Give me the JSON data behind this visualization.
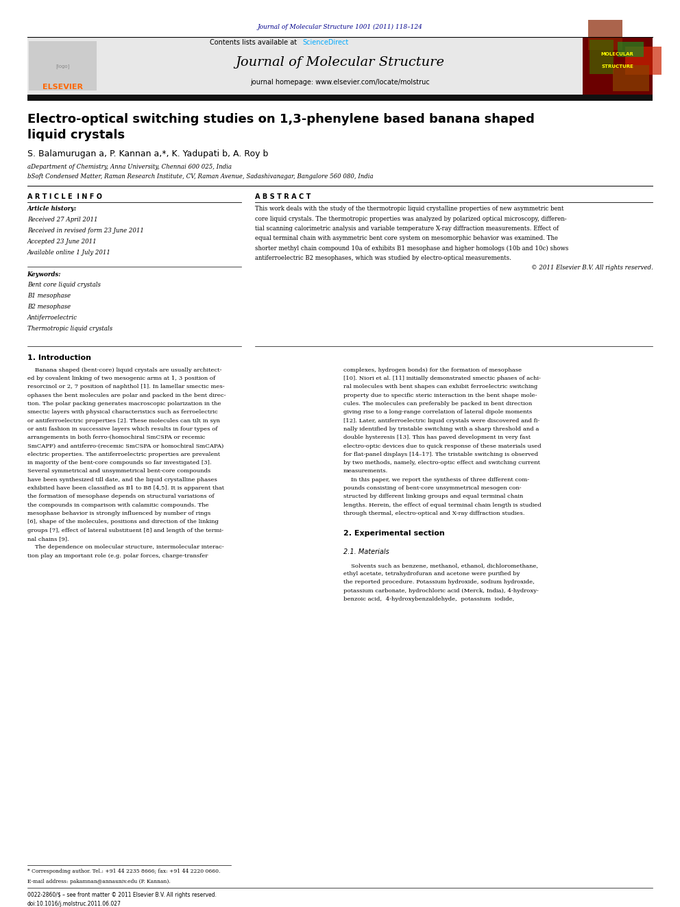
{
  "page_width": 9.92,
  "page_height": 13.23,
  "bg_color": "#ffffff",
  "journal_ref": "Journal of Molecular Structure 1001 (2011) 118–124",
  "journal_ref_color": "#00008B",
  "contents_line": "Contents lists available at ",
  "sciencedirect": "ScienceDirect",
  "sd_color": "#00AAFF",
  "journal_name": "Journal of Molecular Structure",
  "journal_homepage": "journal homepage: www.elsevier.com/locate/molstruc",
  "header_bg": "#E8E8E8",
  "dark_bar_color": "#111111",
  "elsevier_color": "#FF6600",
  "article_title": "Electro-optical switching studies on 1,3-phenylene based banana shaped\nliquid crystals",
  "authors": "S. Balamurugan a, P. Kannan a,*, K. Yadupati b, A. Roy b",
  "affil_a": "aDepartment of Chemistry, Anna University, Chennai 600 025, India",
  "affil_b": "bSoft Condensed Matter, Raman Research Institute, CV, Raman Avenue, Sadashivanagar, Bangalore 560 080, India",
  "article_info_title": "A R T I C L E  I N F O",
  "abstract_title": "A B S T R A C T",
  "article_history_label": "Article history:",
  "received1": "Received 27 April 2011",
  "received2": "Received in revised form 23 June 2011",
  "accepted": "Accepted 23 June 2011",
  "available": "Available online 1 July 2011",
  "keywords_label": "Keywords:",
  "keywords": [
    "Bent core liquid crystals",
    "B1 mesophase",
    "B2 mesophase",
    "Antiferroelectric",
    "Thermotropic liquid crystals"
  ],
  "abstract_text": [
    "This work deals with the study of the thermotropic liquid crystalline properties of new asymmetric bent",
    "core liquid crystals. The thermotropic properties was analyzed by polarized optical microscopy, differen-",
    "tial scanning calorimetric analysis and variable temperature X-ray diffraction measurements. Effect of",
    "equal terminal chain with asymmetric bent core system on mesomorphic behavior was examined. The",
    "shorter methyl chain compound 10a of exhibits B1 mesophase and higher homologs (10b and 10c) shows",
    "antiferroelectric B2 mesophases, which was studied by electro-optical measurements.",
    "© 2011 Elsevier B.V. All rights reserved."
  ],
  "section1_title": "1. Introduction",
  "intro_col1": [
    "    Banana shaped (bent-core) liquid crystals are usually architect-",
    "ed by covalent linking of two mesogenic arms at 1, 3 position of",
    "resorcinol or 2, 7 position of naphthol [1]. In lamellar smectic mes-",
    "ophases the bent molecules are polar and packed in the bent direc-",
    "tion. The polar packing generates macroscopic polarization in the",
    "smectic layers with physical characteristics such as ferroelectric",
    "or antiferroelectric properties [2]. These molecules can tilt in syn",
    "or anti fashion in successive layers which results in four types of",
    "arrangements in both ferro-(homochiral SmCSPA or recemic",
    "SmCAPF) and antiferro-(recemic SmCSPA or homochiral SmCAPA)",
    "electric properties. The antiferroelectric properties are prevalent",
    "in majority of the bent-core compounds so far investigated [3].",
    "Several symmetrical and unsymmetrical bent-core compounds",
    "have been synthesized till date, and the liquid crystalline phases",
    "exhibited have been classified as B1 to B8 [4,5]. It is apparent that",
    "the formation of mesophase depends on structural variations of",
    "the compounds in comparison with calamitic compounds. The",
    "mesophase behavior is strongly influenced by number of rings",
    "[6], shape of the molecules, positions and direction of the linking",
    "groups [7], effect of lateral substituent [8] and length of the termi-",
    "nal chains [9].",
    "    The dependence on molecular structure, intermolecular interac-",
    "tion play an important role (e.g. polar forces, charge-transfer"
  ],
  "intro_col2": [
    "complexes, hydrogen bonds) for the formation of mesophase",
    "[10]. Niori et al. [11] initially demonstrated smectic phases of achi-",
    "ral molecules with bent shapes can exhibit ferroelectric switching",
    "property due to specific steric interaction in the bent shape mole-",
    "cules. The molecules can preferably be packed in bent direction",
    "giving rise to a long-range correlation of lateral dipole moments",
    "[12]. Later, antiferroelectric liquid crystals were discovered and fi-",
    "nally identified by tristable switching with a sharp threshold and a",
    "double hysteresis [13]. This has paved development in very fast",
    "electro-optic devices due to quick response of these materials used",
    "for flat-panel displays [14–17]. The tristable switching is observed",
    "by two methods, namely, electro-optic effect and switching current",
    "measurements.",
    "    In this paper, we report the synthesis of three different com-",
    "pounds consisting of bent-core unsymmetrical mesogen con-",
    "structed by different linking groups and equal terminal chain",
    "lengths. Herein, the effect of equal terminal chain length is studied",
    "through thermal, electro-optical and X-ray diffraction studies."
  ],
  "section2_title": "2. Experimental section",
  "section21_title": "2.1. Materials",
  "materials_text": [
    "    Solvents such as benzene, methanol, ethanol, dichloromethane,",
    "ethyl acetate, tetrahydrofuran and acetone were purified by",
    "the reported procedure. Potassium hydroxide, sodium hydroxide,",
    "potassium carbonate, hydrochloric acid (Merck, India), 4-hydroxy-",
    "benzoic acid,  4-hydroxybenzaldehyde,  potassium  iodide,"
  ],
  "footnote_star": "* Corresponding author. Tel.: +91 44 2235 8666; fax: +91 44 2220 0660.",
  "footnote_email": "E-mail address: pakamnan@annauniv.edu (P. Kannan).",
  "issn_line": "0022-2860/$ – see front matter © 2011 Elsevier B.V. All rights reserved.",
  "doi_line": "doi:10.1016/j.molstruc.2011.06.027",
  "ref_color": "#00008B",
  "cover_text_line1": "MOLECULAR",
  "cover_text_line2": "STRUCTURE"
}
